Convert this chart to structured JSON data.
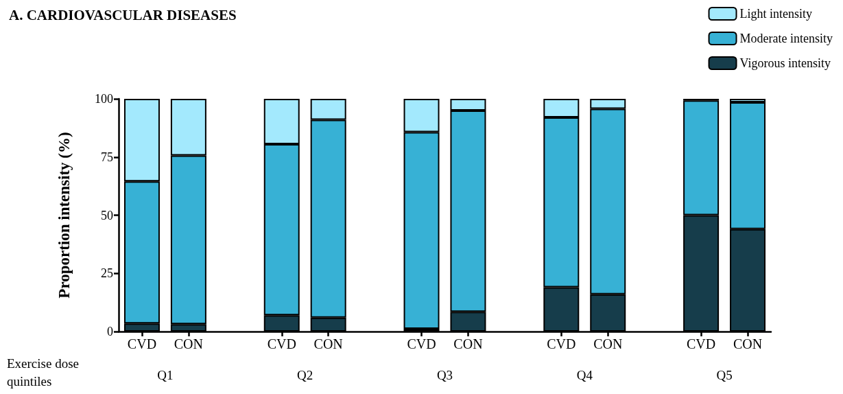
{
  "chart_data": {
    "type": "bar",
    "title": "A. CARDIOVASCULAR DISEASES",
    "ylabel": "Proportion intensity (%)",
    "xlabel": "Exercise dose quintiles",
    "stacked": true,
    "legend": "top right",
    "grid": false,
    "categories": [
      "CVD",
      "CON",
      null,
      "CVD",
      "CON",
      null,
      "CVD",
      "CON",
      null,
      "CVD",
      "CON",
      null,
      "CVD",
      "CON"
    ],
    "series": [
      {
        "name": "Vigorous intensity",
        "color": "#163d4b",
        "values": [
          3.5,
          3.2,
          null,
          7,
          6,
          null,
          1.2,
          8.5,
          null,
          19,
          16,
          null,
          50,
          44
        ]
      },
      {
        "name": "Moderate intensity",
        "color": "#37b1d5",
        "values": [
          61,
          72.5,
          null,
          73.5,
          85,
          null,
          84.5,
          86.5,
          null,
          73,
          79.7,
          null,
          49.3,
          54.5
        ]
      },
      {
        "name": "Light intensity",
        "color": "#a3e9fd",
        "values": [
          35.5,
          24.3,
          null,
          19.5,
          9,
          null,
          14.3,
          5,
          null,
          8,
          4.3,
          null,
          0.7,
          1.5
        ]
      }
    ],
    "annotations": [
      "Q1",
      "Q2",
      "Q3",
      "Q4",
      "Q5"
    ],
    "ylim": [
      0,
      100
    ],
    "yticks": [
      0,
      25,
      50,
      75,
      100
    ]
  }
}
